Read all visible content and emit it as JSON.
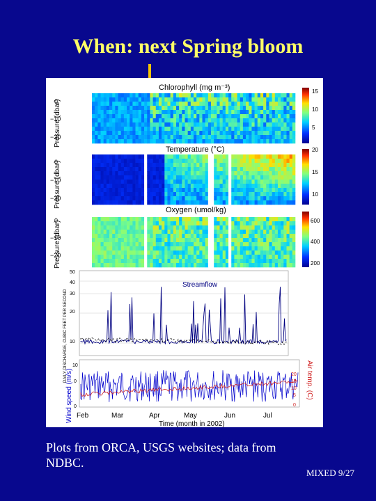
{
  "slide": {
    "title": "When: next Spring bloom",
    "footer": "Plots from ORCA, USGS websites; data from NDBC.",
    "slide_number": "MIXED 9/27"
  },
  "colors": {
    "background": "#08088e",
    "title": "#ffff66",
    "marker_arrow": "#f5c400",
    "streamflow": "#000080",
    "wind_speed": "#0000cc",
    "air_temp": "#d02020"
  },
  "chart_data": [
    {
      "type": "heatmap",
      "title": "Chlorophyll (mg m⁻³)",
      "ylabel": "Pressure (dbar)",
      "ylim": [
        -25,
        2
      ],
      "yticks": [
        "0",
        "−10",
        "−20"
      ],
      "colorbar_ticks": [
        "15",
        "10",
        "5"
      ]
    },
    {
      "type": "heatmap",
      "title": "Temperature (°C)",
      "ylabel": "Pressure (dbar)",
      "ylim": [
        -25,
        2
      ],
      "yticks": [
        "0",
        "−10",
        "−20"
      ],
      "colorbar_ticks": [
        "20",
        "15",
        "10"
      ]
    },
    {
      "type": "heatmap",
      "title": "Oxygen (umol/kg)",
      "ylabel": "Pressure (dbar)",
      "ylim": [
        -25,
        2
      ],
      "yticks": [
        "0",
        "−10",
        "−20"
      ],
      "colorbar_ticks": [
        "600",
        "400",
        "200"
      ]
    },
    {
      "type": "line",
      "title": "Streamflow",
      "ylabel": "DAILY DISCHARGE, CUBIC FEET PER SECOND",
      "ylim": [
        0,
        50
      ],
      "yticks": [
        "50",
        "40",
        "30",
        "20",
        "10"
      ],
      "xtick_labels": [
        "Feb",
        "Mar",
        "Apr",
        "May",
        "Jun",
        "Jul"
      ]
    },
    {
      "type": "line",
      "xlabel": "Time (month in 2002)",
      "xtick_labels": [
        "Feb",
        "Mar",
        "Apr",
        "May",
        "Jun",
        "Jul"
      ],
      "ylabel": "Wind speed (m/s)",
      "yticks_left": [
        "10",
        "0",
        "0"
      ],
      "y2label": "Air temp. (C)",
      "yticks_right": [
        "20",
        "15",
        "10",
        "5",
        "0"
      ],
      "series": [
        {
          "name": "Wind speed (m/s)",
          "color": "#0000cc"
        },
        {
          "name": "Air temp. (C)",
          "color": "#d02020"
        }
      ]
    }
  ]
}
